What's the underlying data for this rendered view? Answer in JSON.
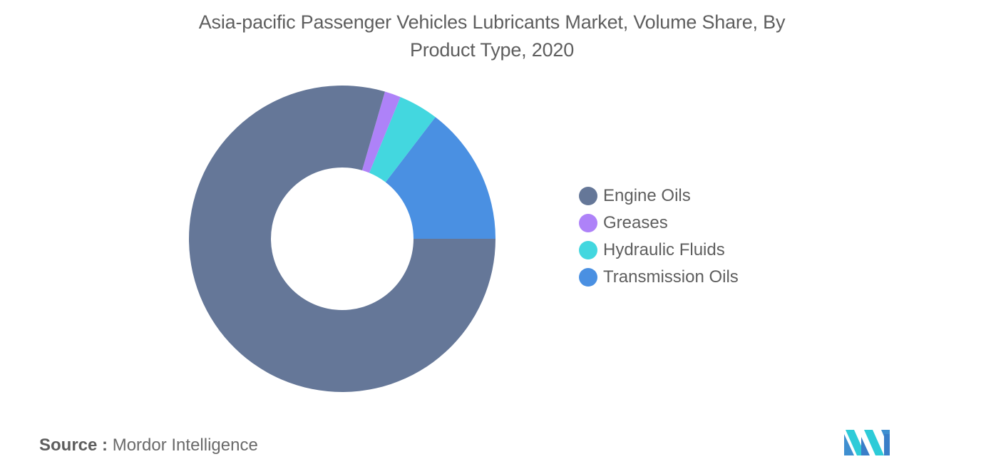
{
  "title_line1": "Asia-pacific Passenger Vehicles Lubricants Market, Volume Share, By",
  "title_line2": "Product Type, 2020",
  "source_label": "Source :",
  "source_value": "Mordor Intelligence",
  "logo_icon": "mordor-intelligence-logo",
  "chart_data": {
    "type": "pie",
    "variant": "donut",
    "title": "Asia-pacific Passenger Vehicles Lubricants Market, Volume Share, By Product Type, 2020",
    "categories": [
      "Engine Oils",
      "Greases",
      "Hydraulic Fluids",
      "Transmission Oils"
    ],
    "values": [
      79.5,
      1.7,
      4.2,
      14.6
    ],
    "unit": "%",
    "colors": [
      "#657798",
      "#ae82f8",
      "#43d7df",
      "#4a90e2"
    ],
    "start_angle": "0deg-at-top-clockwise-from-first-after-engine",
    "legend_position": "right",
    "data_labels": false
  }
}
